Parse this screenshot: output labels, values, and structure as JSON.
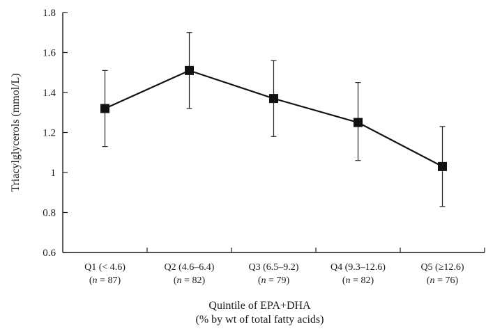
{
  "chart_data": {
    "type": "line",
    "title": "",
    "xlabel": "Quintile of EPA+DHA",
    "xlabel_line2": "(% by wt of total fatty acids)",
    "ylabel": "Triacylglycerols (mmol/L)",
    "ylim": [
      0.6,
      1.8
    ],
    "yticks": [
      "0.6",
      "0.8",
      "1",
      "1.2",
      "1.4",
      "1.6",
      "1.8"
    ],
    "grid": false,
    "categories": [
      {
        "label": "Q1 (< 4.6)",
        "n": "87"
      },
      {
        "label": "Q2 (4.6–6.4)",
        "n": "82"
      },
      {
        "label": "Q3 (6.5–9.2)",
        "n": "79"
      },
      {
        "label": "Q4 (9.3–12.6)",
        "n": "82"
      },
      {
        "label": "Q5 (≥12.6)",
        "n": "76"
      }
    ],
    "n_prefix": "n",
    "n_equals": " = ",
    "series": [
      {
        "values": [
          1.32,
          1.51,
          1.37,
          1.25,
          1.03
        ],
        "error_low": [
          1.13,
          1.32,
          1.18,
          1.06,
          0.83
        ],
        "error_high": [
          1.51,
          1.7,
          1.56,
          1.45,
          1.23
        ],
        "marker": "square",
        "color": "#111111"
      }
    ]
  }
}
